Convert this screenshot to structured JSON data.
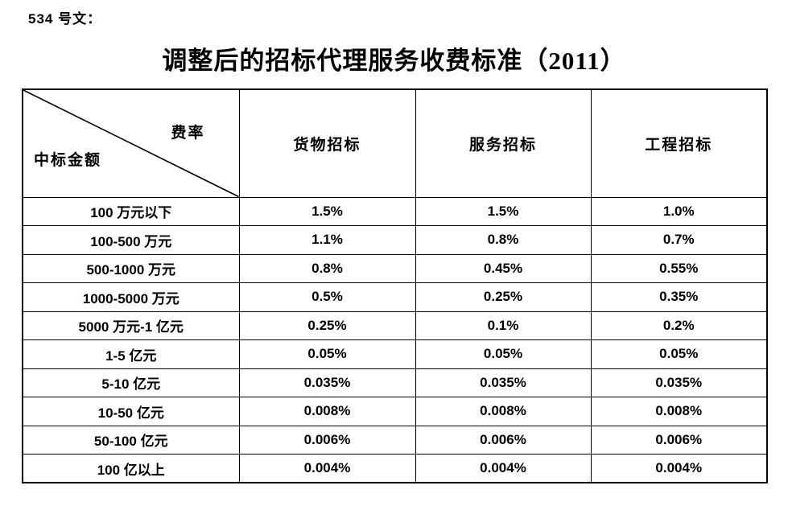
{
  "document": {
    "doc_label": "534 号文：",
    "title": "调整后的招标代理服务收费标准（2011）"
  },
  "table": {
    "corner": {
      "top_right": "费率",
      "bottom_left": "中标金额"
    },
    "columns": [
      "货物招标",
      "服务招标",
      "工程招标"
    ],
    "rows": [
      {
        "label": "100 万元以下",
        "values": [
          "1.5%",
          "1.5%",
          "1.0%"
        ]
      },
      {
        "label": "100-500 万元",
        "values": [
          "1.1%",
          "0.8%",
          "0.7%"
        ]
      },
      {
        "label": "500-1000 万元",
        "values": [
          "0.8%",
          "0.45%",
          "0.55%"
        ]
      },
      {
        "label": "1000-5000 万元",
        "values": [
          "0.5%",
          "0.25%",
          "0.35%"
        ]
      },
      {
        "label": "5000 万元-1 亿元",
        "values": [
          "0.25%",
          "0.1%",
          "0.2%"
        ]
      },
      {
        "label": "1-5 亿元",
        "values": [
          "0.05%",
          "0.05%",
          "0.05%"
        ]
      },
      {
        "label": "5-10 亿元",
        "values": [
          "0.035%",
          "0.035%",
          "0.035%"
        ]
      },
      {
        "label": "10-50 亿元",
        "values": [
          "0.008%",
          "0.008%",
          "0.008%"
        ]
      },
      {
        "label": "50-100 亿元",
        "values": [
          "0.006%",
          "0.006%",
          "0.006%"
        ]
      },
      {
        "label": "100 亿以上",
        "values": [
          "0.004%",
          "0.004%",
          "0.004%"
        ]
      }
    ],
    "border_color": "#000000",
    "background_color": "#ffffff"
  }
}
